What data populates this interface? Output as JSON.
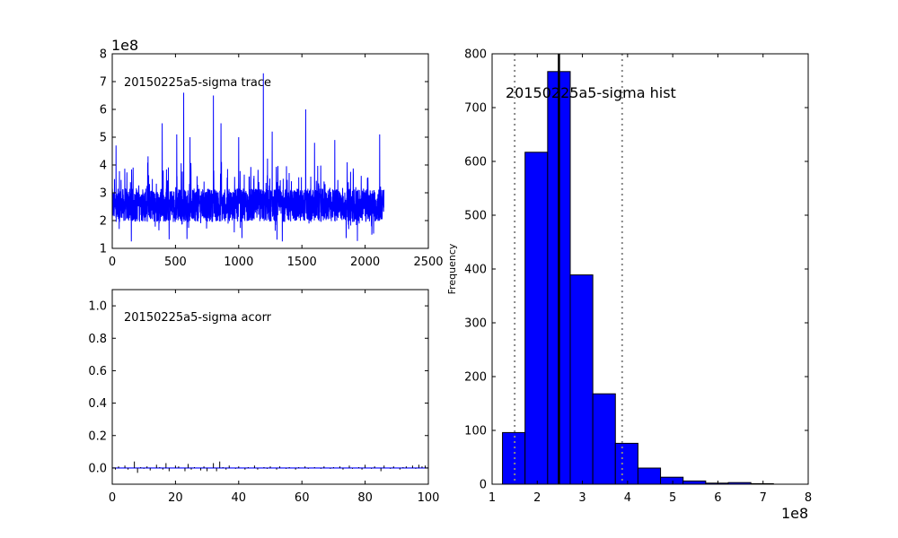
{
  "chart_data": [
    {
      "type": "line",
      "annotation": "20150225a5-sigma trace",
      "scale_label": "1e8",
      "xlim": [
        0,
        2500
      ],
      "ylim": [
        1,
        8
      ],
      "x_ticks": [
        0,
        500,
        1000,
        1500,
        2000,
        2500
      ],
      "y_ticks": [
        1,
        2,
        3,
        4,
        5,
        6,
        7,
        8
      ],
      "n_samples": 2150,
      "spikes": [
        {
          "x": 30,
          "y": 4.7
        },
        {
          "x": 395,
          "y": 5.5
        },
        {
          "x": 510,
          "y": 5.1
        },
        {
          "x": 565,
          "y": 6.6
        },
        {
          "x": 615,
          "y": 5.0
        },
        {
          "x": 800,
          "y": 6.5
        },
        {
          "x": 860,
          "y": 5.5
        },
        {
          "x": 1000,
          "y": 5.0
        },
        {
          "x": 1195,
          "y": 7.3
        },
        {
          "x": 1265,
          "y": 5.2
        },
        {
          "x": 1530,
          "y": 6.0
        },
        {
          "x": 1600,
          "y": 4.8
        },
        {
          "x": 1760,
          "y": 4.9
        },
        {
          "x": 2115,
          "y": 5.1
        }
      ],
      "color": "#0000ff"
    },
    {
      "type": "bar",
      "annotation": "20150225a5-sigma acorr",
      "xlim": [
        0,
        100
      ],
      "ylim": [
        -0.1,
        1.1
      ],
      "x_ticks": [
        0,
        20,
        40,
        60,
        80,
        100
      ],
      "y_ticks": [
        0.0,
        0.2,
        0.4,
        0.6,
        0.8,
        1.0
      ],
      "y_tick_labels": [
        "0.0",
        "0.2",
        "0.4",
        "0.6",
        "0.8",
        "1.0"
      ],
      "values": [
        0.005,
        -0.01,
        0.01,
        0.0,
        0.015,
        -0.01,
        0.0,
        0.04,
        -0.03,
        0.005,
        -0.005,
        0.01,
        -0.015,
        0.0,
        0.02,
        0.005,
        -0.01,
        0.03,
        -0.02,
        0.0,
        0.015,
        0.01,
        0.0,
        -0.02,
        0.025,
        -0.01,
        0.005,
        0.0,
        -0.015,
        0.01,
        -0.02,
        0.0,
        0.03,
        -0.02,
        0.04,
        0.005,
        -0.01,
        0.015,
        0.0,
        -0.005,
        0.01,
        0.0,
        -0.01,
        0.005,
        0.0,
        0.015,
        -0.01,
        0.0,
        0.005,
        -0.005,
        0.01,
        0.0,
        -0.01,
        0.01,
        0.0,
        -0.005,
        0.005,
        0.0,
        -0.01,
        0.005,
        0.0,
        0.01,
        -0.005,
        0.0,
        0.005,
        0.0,
        -0.005,
        0.01,
        0.0,
        -0.005,
        0.005,
        0.0,
        0.01,
        -0.01,
        0.0,
        0.015,
        -0.005,
        0.0,
        0.005,
        -0.01,
        0.02,
        0.0,
        -0.005,
        0.01,
        0.0,
        -0.02,
        0.015,
        0.0,
        -0.005,
        0.01,
        0.0,
        -0.01,
        0.005,
        0.01,
        0.0,
        0.015,
        -0.005,
        0.02,
        0.01,
        0.015
      ],
      "color": "#0000ff"
    },
    {
      "type": "bar",
      "annotation": "20150225a5-sigma hist",
      "ylabel": "Frequency",
      "scale_label": "1e8",
      "xlim": [
        1,
        8
      ],
      "ylim": [
        0,
        800
      ],
      "x_ticks": [
        1,
        2,
        3,
        4,
        5,
        6,
        7,
        8
      ],
      "y_ticks": [
        0,
        100,
        200,
        300,
        400,
        500,
        600,
        700,
        800
      ],
      "bin_edges": [
        1.23,
        1.73,
        2.23,
        2.73,
        3.23,
        3.73,
        4.23,
        4.73,
        5.23,
        5.73,
        6.23,
        6.73,
        7.23
      ],
      "counts": [
        96,
        617,
        767,
        389,
        168,
        76,
        30,
        13,
        6,
        2,
        3,
        1
      ],
      "mean_line": 2.48,
      "interval_lines": [
        1.5,
        3.88
      ],
      "color": "#0000ff"
    }
  ]
}
